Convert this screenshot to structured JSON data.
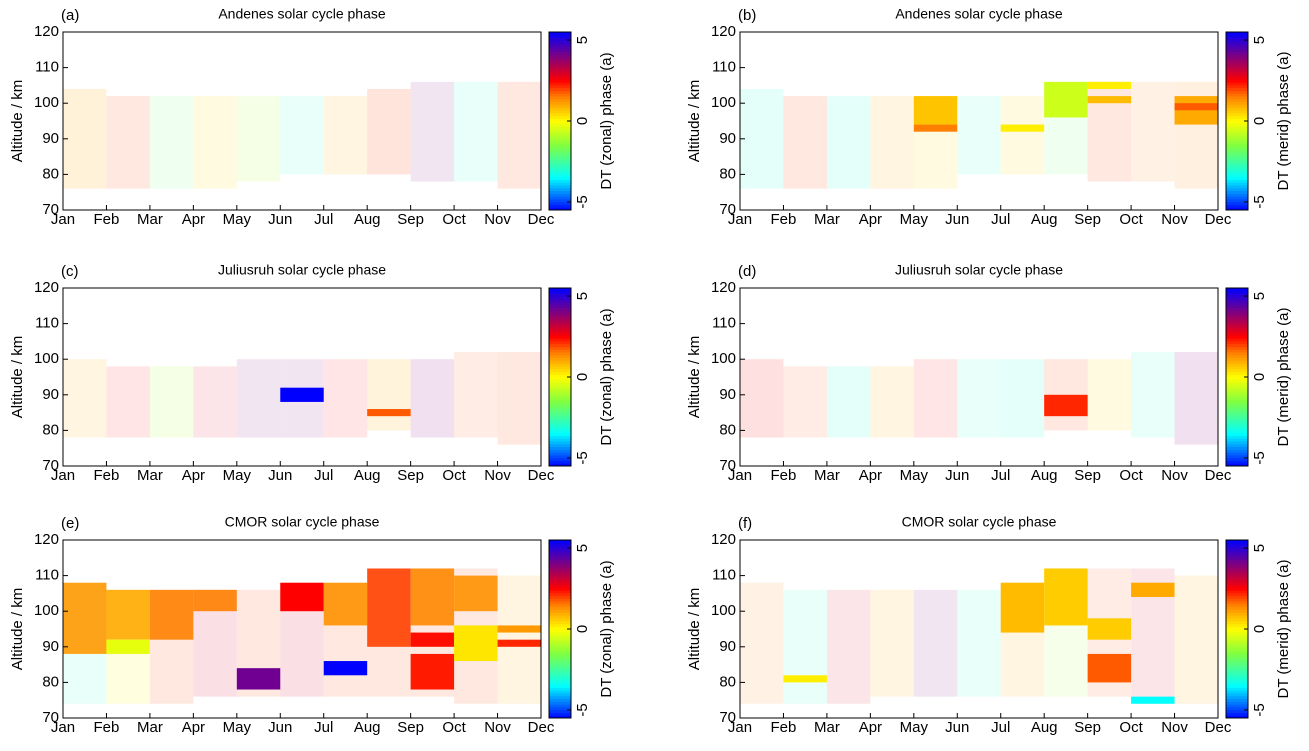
{
  "chart_data": [
    {
      "type": "heatmap",
      "label": "(a)",
      "title": "Andenes solar cycle phase",
      "ylabel": "Altitude / km",
      "clabel": "DT (zonal) phase (a)",
      "categories": [
        "Jan",
        "Feb",
        "Mar",
        "Apr",
        "May",
        "Jun",
        "Jul",
        "Aug",
        "Sep",
        "Oct",
        "Nov",
        "Dec"
      ],
      "ylim": [
        70,
        120
      ],
      "yticks": [
        70,
        80,
        90,
        100,
        110,
        120
      ],
      "clim": [
        -5.5,
        5.5
      ],
      "cticks": [
        -5,
        0,
        5
      ],
      "colormap": [
        [
          -5.5,
          "#0000ff"
        ],
        [
          -3.5,
          "#00ffff"
        ],
        [
          -1.5,
          "#80ff40"
        ],
        [
          0,
          "#ffff00"
        ],
        [
          1.5,
          "#ff8000"
        ],
        [
          2.5,
          "#ff0000"
        ],
        [
          4,
          "#800080"
        ],
        [
          5.5,
          "#0000ff"
        ]
      ],
      "cells": [
        [
          0,
          1,
          76,
          104,
          1,
          0.15
        ],
        [
          1,
          2,
          76,
          102,
          2,
          0.12
        ],
        [
          2,
          3,
          76,
          102,
          -2,
          0.1
        ],
        [
          3,
          4,
          76,
          102,
          0.5,
          0.12
        ],
        [
          4,
          5,
          78,
          102,
          -1,
          0.12
        ],
        [
          5,
          6,
          80,
          102,
          -3,
          0.1
        ],
        [
          6,
          7,
          80,
          102,
          1,
          0.12
        ],
        [
          7,
          8,
          80,
          104,
          2,
          0.14
        ],
        [
          8,
          9,
          78,
          106,
          4,
          0.1
        ],
        [
          9,
          10,
          78,
          106,
          -3,
          0.1
        ],
        [
          10,
          11,
          76,
          106,
          2,
          0.12
        ]
      ]
    },
    {
      "type": "heatmap",
      "label": "(b)",
      "title": "Andenes solar cycle phase",
      "ylabel": "Altitude / km",
      "clabel": "DT (merid) phase (a)",
      "categories": [
        "Jan",
        "Feb",
        "Mar",
        "Apr",
        "May",
        "Jun",
        "Jul",
        "Aug",
        "Sep",
        "Oct",
        "Nov",
        "Dec"
      ],
      "ylim": [
        70,
        120
      ],
      "yticks": [
        70,
        80,
        90,
        100,
        110,
        120
      ],
      "clim": [
        -5.5,
        5.5
      ],
      "cticks": [
        -5,
        0,
        5
      ],
      "colormap": [
        [
          -5.5,
          "#0000ff"
        ],
        [
          -3.5,
          "#00ffff"
        ],
        [
          -1.5,
          "#80ff40"
        ],
        [
          0,
          "#ffff00"
        ],
        [
          1.5,
          "#ff8000"
        ],
        [
          2.5,
          "#ff0000"
        ],
        [
          4,
          "#800080"
        ],
        [
          5.5,
          "#0000ff"
        ]
      ],
      "cells": [
        [
          0,
          1,
          76,
          104,
          -3,
          0.12
        ],
        [
          1,
          2,
          76,
          102,
          2,
          0.12
        ],
        [
          2,
          3,
          76,
          102,
          -3,
          0.12
        ],
        [
          3,
          4,
          76,
          102,
          1,
          0.12
        ],
        [
          4,
          5,
          76,
          102,
          0.5,
          0.12
        ],
        [
          5,
          6,
          80,
          102,
          -3,
          0.1
        ],
        [
          6,
          7,
          80,
          102,
          0.5,
          0.12
        ],
        [
          7,
          8,
          80,
          106,
          -2,
          0.1
        ],
        [
          8,
          9,
          78,
          106,
          2,
          0.12
        ],
        [
          9,
          10,
          78,
          106,
          1.5,
          0.1
        ],
        [
          10,
          11,
          76,
          106,
          1.5,
          0.12
        ],
        [
          4,
          5,
          94,
          102,
          0.7,
          1
        ],
        [
          4,
          5,
          92,
          94,
          1.5,
          1
        ],
        [
          6,
          7,
          92,
          94,
          0.2,
          1
        ],
        [
          7,
          8,
          96,
          106,
          -0.6,
          1
        ],
        [
          8,
          9,
          104,
          106,
          0.2,
          1
        ],
        [
          8,
          9,
          100,
          102,
          0.8,
          1
        ],
        [
          10,
          11,
          94,
          102,
          1,
          1
        ],
        [
          10,
          11,
          98,
          100,
          1.8,
          1
        ]
      ]
    },
    {
      "type": "heatmap",
      "label": "(c)",
      "title": "Juliusruh solar cycle phase",
      "ylabel": "Altitude / km",
      "clabel": "DT (zonal) phase (a)",
      "categories": [
        "Jan",
        "Feb",
        "Mar",
        "Apr",
        "May",
        "Jun",
        "Jul",
        "Aug",
        "Sep",
        "Oct",
        "Nov",
        "Dec"
      ],
      "ylim": [
        70,
        120
      ],
      "yticks": [
        70,
        80,
        90,
        100,
        110,
        120
      ],
      "clim": [
        -5.5,
        5.5
      ],
      "cticks": [
        -5,
        0,
        5
      ],
      "colormap": [
        [
          -5.5,
          "#0000ff"
        ],
        [
          -3.5,
          "#00ffff"
        ],
        [
          -1.5,
          "#80ff40"
        ],
        [
          0,
          "#ffff00"
        ],
        [
          1.5,
          "#ff8000"
        ],
        [
          2.5,
          "#ff0000"
        ],
        [
          4,
          "#800080"
        ],
        [
          5.5,
          "#0000ff"
        ]
      ],
      "cells": [
        [
          0,
          1,
          78,
          100,
          1,
          0.12
        ],
        [
          1,
          2,
          78,
          98,
          2.5,
          0.1
        ],
        [
          2,
          3,
          78,
          98,
          -1,
          0.12
        ],
        [
          3,
          4,
          78,
          98,
          3,
          0.1
        ],
        [
          4,
          5,
          78,
          100,
          4,
          0.1
        ],
        [
          5,
          6,
          78,
          100,
          4,
          0.1
        ],
        [
          6,
          7,
          78,
          100,
          2.5,
          0.1
        ],
        [
          7,
          8,
          80,
          100,
          1,
          0.14
        ],
        [
          8,
          9,
          78,
          100,
          4,
          0.12
        ],
        [
          9,
          10,
          78,
          102,
          2,
          0.1
        ],
        [
          10,
          11,
          76,
          102,
          2,
          0.12
        ],
        [
          5,
          6,
          88,
          92,
          5.5,
          1
        ],
        [
          7,
          8,
          84,
          86,
          1.8,
          1
        ]
      ]
    },
    {
      "type": "heatmap",
      "label": "(d)",
      "title": "Juliusruh solar cycle phase",
      "ylabel": "Altitude / km",
      "clabel": "DT (merid) phase (a)",
      "categories": [
        "Jan",
        "Feb",
        "Mar",
        "Apr",
        "May",
        "Jun",
        "Jul",
        "Aug",
        "Sep",
        "Oct",
        "Nov",
        "Dec"
      ],
      "ylim": [
        70,
        120
      ],
      "yticks": [
        70,
        80,
        90,
        100,
        110,
        120
      ],
      "clim": [
        -5.5,
        5.5
      ],
      "cticks": [
        -5,
        0,
        5
      ],
      "colormap": [
        [
          -5.5,
          "#0000ff"
        ],
        [
          -3.5,
          "#00ffff"
        ],
        [
          -1.5,
          "#80ff40"
        ],
        [
          0,
          "#ffff00"
        ],
        [
          1.5,
          "#ff8000"
        ],
        [
          2.5,
          "#ff0000"
        ],
        [
          4,
          "#800080"
        ],
        [
          5.5,
          "#0000ff"
        ]
      ],
      "cells": [
        [
          0,
          1,
          78,
          100,
          2.5,
          0.12
        ],
        [
          1,
          2,
          78,
          98,
          2,
          0.1
        ],
        [
          2,
          3,
          78,
          98,
          -3,
          0.12
        ],
        [
          3,
          4,
          78,
          98,
          1,
          0.12
        ],
        [
          4,
          5,
          78,
          100,
          2.5,
          0.1
        ],
        [
          5,
          6,
          78,
          100,
          -3,
          0.1
        ],
        [
          6,
          7,
          78,
          100,
          -3,
          0.12
        ],
        [
          7,
          8,
          80,
          100,
          2,
          0.12
        ],
        [
          8,
          9,
          80,
          100,
          0.5,
          0.12
        ],
        [
          9,
          10,
          78,
          102,
          -3,
          0.1
        ],
        [
          10,
          11,
          76,
          102,
          4,
          0.12
        ],
        [
          7,
          8,
          84,
          90,
          2.2,
          1
        ]
      ]
    },
    {
      "type": "heatmap",
      "label": "(e)",
      "title": "CMOR solar cycle phase",
      "ylabel": "Altitude / km",
      "clabel": "DT (zonal) phase (a)",
      "categories": [
        "Jan",
        "Feb",
        "Mar",
        "Apr",
        "May",
        "Jun",
        "Jul",
        "Aug",
        "Sep",
        "Oct",
        "Nov",
        "Dec"
      ],
      "ylim": [
        70,
        120
      ],
      "yticks": [
        70,
        80,
        90,
        100,
        110,
        120
      ],
      "clim": [
        -5.5,
        5.5
      ],
      "cticks": [
        -5,
        0,
        5
      ],
      "colormap": [
        [
          -5.5,
          "#0000ff"
        ],
        [
          -3.5,
          "#00ffff"
        ],
        [
          -1.5,
          "#80ff40"
        ],
        [
          0,
          "#ffff00"
        ],
        [
          1.5,
          "#ff8000"
        ],
        [
          2.5,
          "#ff0000"
        ],
        [
          4,
          "#800080"
        ],
        [
          5.5,
          "#0000ff"
        ]
      ],
      "cells": [
        [
          0,
          1,
          74,
          108,
          -3,
          0.1
        ],
        [
          1,
          2,
          74,
          106,
          0,
          0.12
        ],
        [
          2,
          3,
          74,
          106,
          2,
          0.12
        ],
        [
          3,
          4,
          76,
          106,
          3,
          0.12
        ],
        [
          4,
          5,
          76,
          106,
          2,
          0.12
        ],
        [
          5,
          6,
          76,
          108,
          3,
          0.12
        ],
        [
          6,
          7,
          76,
          108,
          2,
          0.12
        ],
        [
          7,
          8,
          76,
          112,
          2,
          0.12
        ],
        [
          8,
          9,
          76,
          112,
          2,
          0.12
        ],
        [
          9,
          10,
          74,
          112,
          2,
          0.12
        ],
        [
          10,
          11,
          74,
          110,
          1,
          0.12
        ],
        [
          0,
          1,
          88,
          108,
          1.2,
          0.9
        ],
        [
          1,
          2,
          92,
          106,
          1,
          0.9
        ],
        [
          1,
          2,
          88,
          92,
          -0.3,
          1
        ],
        [
          2,
          3,
          92,
          106,
          1.5,
          0.9
        ],
        [
          3,
          4,
          100,
          106,
          1.5,
          0.9
        ],
        [
          4,
          5,
          78,
          84,
          4.2,
          1
        ],
        [
          5,
          6,
          100,
          108,
          2.5,
          1
        ],
        [
          6,
          7,
          96,
          108,
          1.3,
          0.9
        ],
        [
          6,
          7,
          82,
          86,
          5.5,
          1
        ],
        [
          7,
          8,
          90,
          112,
          2,
          0.9
        ],
        [
          8,
          9,
          96,
          112,
          1.4,
          0.9
        ],
        [
          8,
          9,
          90,
          94,
          2.4,
          1
        ],
        [
          8,
          9,
          78,
          88,
          2.3,
          1
        ],
        [
          9,
          10,
          86,
          96,
          0.3,
          1
        ],
        [
          9,
          10,
          100,
          110,
          1.3,
          0.9
        ],
        [
          10,
          11,
          94,
          96,
          1.2,
          1
        ],
        [
          10,
          11,
          90,
          92,
          2.2,
          1
        ]
      ]
    },
    {
      "type": "heatmap",
      "label": "(f)",
      "title": "CMOR solar cycle phase",
      "ylabel": "Altitude / km",
      "clabel": "DT (merid) phase (a)",
      "categories": [
        "Jan",
        "Feb",
        "Mar",
        "Apr",
        "May",
        "Jun",
        "Jul",
        "Aug",
        "Sep",
        "Oct",
        "Nov",
        "Dec"
      ],
      "ylim": [
        70,
        120
      ],
      "yticks": [
        70,
        80,
        90,
        100,
        110,
        120
      ],
      "clim": [
        -5.5,
        5.5
      ],
      "cticks": [
        -5,
        0,
        5
      ],
      "colormap": [
        [
          -5.5,
          "#0000ff"
        ],
        [
          -3.5,
          "#00ffff"
        ],
        [
          -1.5,
          "#80ff40"
        ],
        [
          0,
          "#ffff00"
        ],
        [
          1.5,
          "#ff8000"
        ],
        [
          2.5,
          "#ff0000"
        ],
        [
          4,
          "#800080"
        ],
        [
          5.5,
          "#0000ff"
        ]
      ],
      "cells": [
        [
          0,
          1,
          74,
          108,
          1.5,
          0.1
        ],
        [
          1,
          2,
          74,
          106,
          -3,
          0.1
        ],
        [
          2,
          3,
          74,
          106,
          3,
          0.1
        ],
        [
          3,
          4,
          76,
          106,
          1,
          0.12
        ],
        [
          4,
          5,
          76,
          106,
          4,
          0.1
        ],
        [
          5,
          6,
          76,
          106,
          -3,
          0.1
        ],
        [
          6,
          7,
          76,
          108,
          1,
          0.12
        ],
        [
          7,
          8,
          76,
          112,
          -1,
          0.1
        ],
        [
          8,
          9,
          76,
          112,
          2,
          0.1
        ],
        [
          9,
          10,
          74,
          112,
          3,
          0.1
        ],
        [
          10,
          11,
          74,
          110,
          1,
          0.12
        ],
        [
          1,
          2,
          80,
          82,
          0.2,
          1
        ],
        [
          6,
          7,
          94,
          108,
          0.8,
          1
        ],
        [
          7,
          8,
          96,
          112,
          0.6,
          1
        ],
        [
          8,
          9,
          92,
          98,
          0.6,
          1
        ],
        [
          8,
          9,
          80,
          88,
          1.8,
          1
        ],
        [
          9,
          10,
          104,
          108,
          1,
          1
        ],
        [
          9,
          10,
          74,
          76,
          -3.5,
          1
        ]
      ]
    }
  ]
}
